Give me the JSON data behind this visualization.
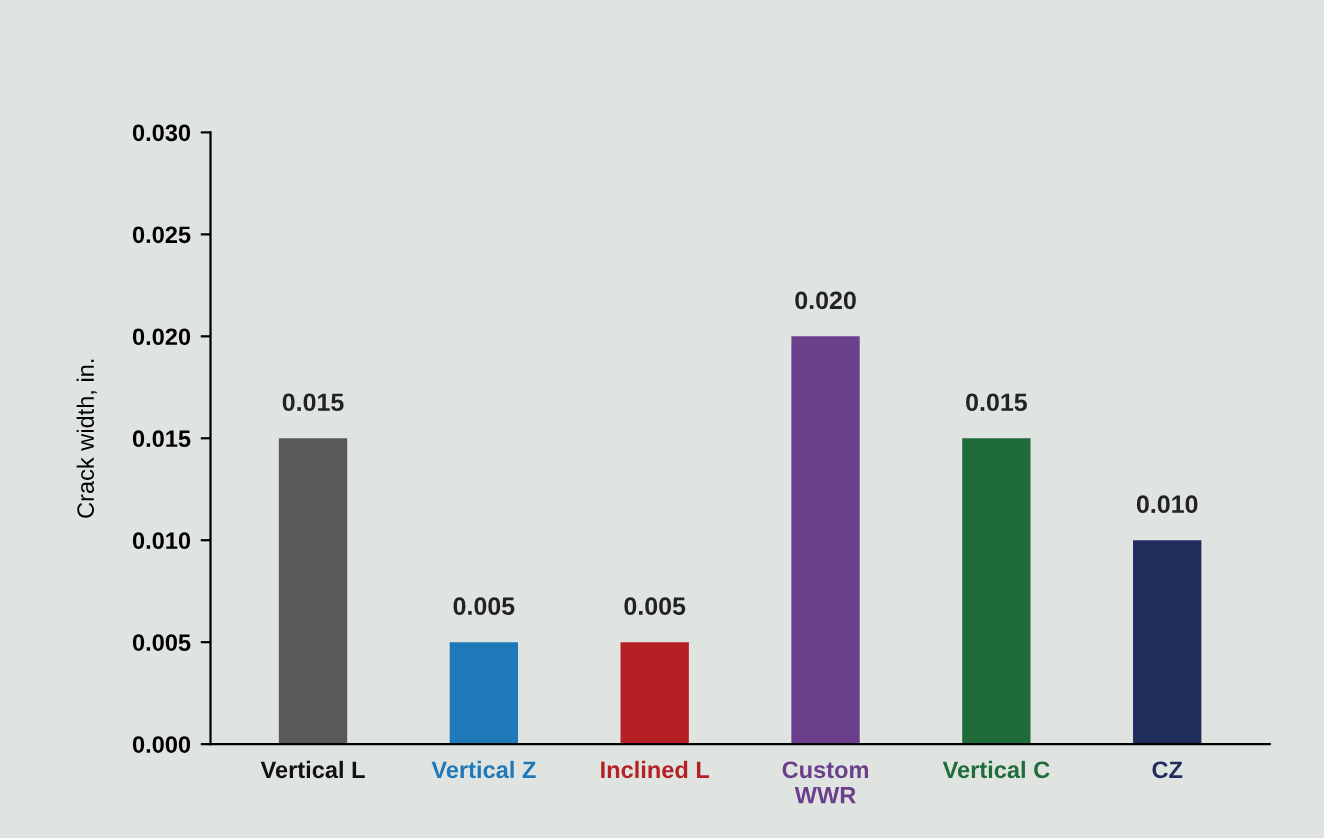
{
  "chart_data": {
    "type": "bar",
    "ylabel": "Crack width, in.",
    "categories": [
      "Vertical L",
      "Vertical Z",
      "Inclined L",
      "Custom\nWWR",
      "Vertical C",
      "CZ"
    ],
    "values": [
      0.015,
      0.005,
      0.005,
      0.02,
      0.015,
      0.01
    ],
    "colors": [
      "#595a58",
      "#1f78b8",
      "#b52025",
      "#6b3f8c",
      "#1f6b3a",
      "#212d5c"
    ],
    "value_labels": [
      "0.015",
      "0.005",
      "0.005",
      "0.020",
      "0.015",
      "0.010"
    ],
    "ylim": [
      0,
      0.03
    ],
    "yticks": [
      {
        "value": 0,
        "label": "0.000"
      },
      {
        "value": 0.005,
        "label": "0.005"
      },
      {
        "value": 0.01,
        "label": "0.010"
      },
      {
        "value": 0.015,
        "label": "0.015"
      },
      {
        "value": 0.02,
        "label": "0.020"
      },
      {
        "value": 0.025,
        "label": "0.025"
      },
      {
        "value": 0.03,
        "label": "0.030"
      }
    ],
    "grid": false,
    "legend": false
  }
}
